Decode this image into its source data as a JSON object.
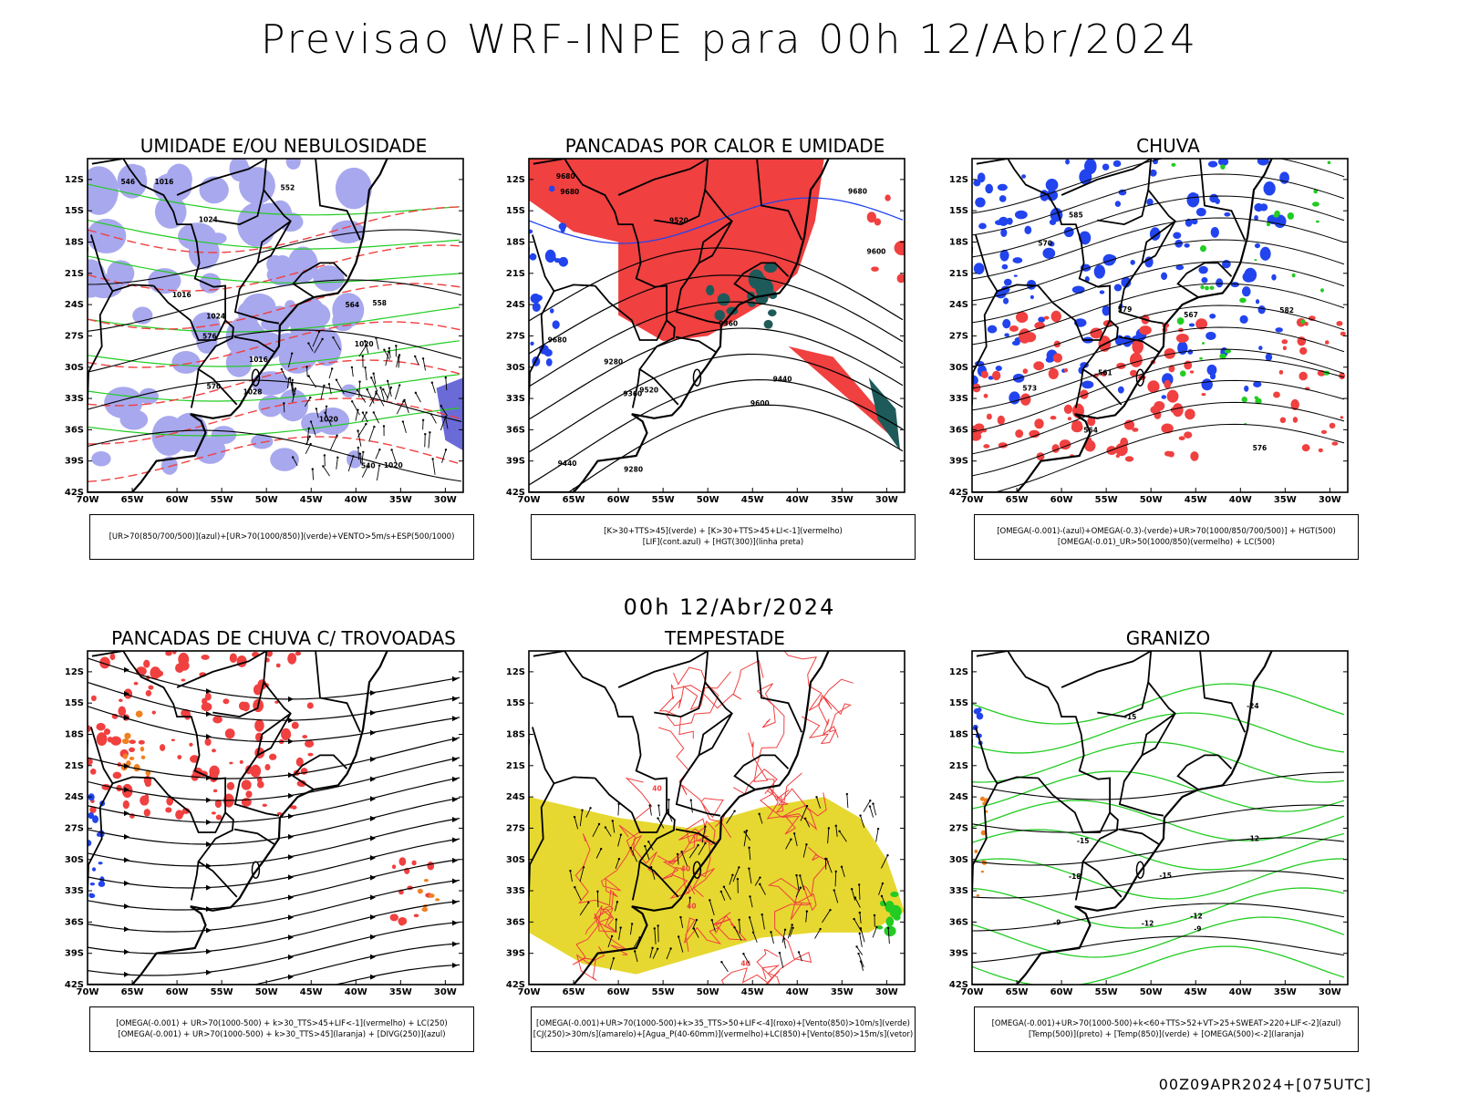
{
  "title": "Previsao WRF-INPE  para 00h 12/Abr/2024",
  "subtitle": "00h 12/Abr/2024",
  "footer": "00Z09APR2024+[075UTC]",
  "axes": {
    "lat_labels": [
      "12S",
      "15S",
      "18S",
      "21S",
      "24S",
      "27S",
      "30S",
      "33S",
      "36S",
      "39S",
      "42S"
    ],
    "lon_labels": [
      "70W",
      "65W",
      "60W",
      "55W",
      "50W",
      "45W",
      "40W",
      "35W",
      "30W"
    ]
  },
  "colors": {
    "red": "#f04040",
    "green": "#22cc22",
    "blue": "#2244ee",
    "lavender": "#a8a8ee",
    "yellow": "#e6d830",
    "teal": "#1f5a5a",
    "orange": "#f08020"
  },
  "panels": [
    {
      "id": "umidade",
      "title": "UMIDADE E/OU NEBULOSIDADE",
      "legend": [
        "[UR>70(850/700/500)](azul)+[UR>70(1000/850)](verde)+VENTO>5m/s+ESP(500/1000)"
      ],
      "contour_labels": [
        "1016",
        "1016",
        "1016",
        "1020",
        "1020",
        "1024",
        "1028",
        "576",
        "570",
        "564",
        "558",
        "552",
        "546",
        "540",
        "1024",
        "1020"
      ]
    },
    {
      "id": "pancadas-calor",
      "title": "PANCADAS POR CALOR E UMIDADE",
      "legend": [
        "[K>30+TTS>45](verde) + [K>30+TTS>45+LI<-1](vermelho)",
        "[LIF](cont.azul) + [HGT(300)](linha preta)"
      ],
      "contour_labels": [
        "9680",
        "9680",
        "9680",
        "9680",
        "9600",
        "9600",
        "9520",
        "9520",
        "9440",
        "9440",
        "9360",
        "9360",
        "9280",
        "9280"
      ]
    },
    {
      "id": "chuva",
      "title": "CHUVA",
      "legend": [
        "[OMEGA(-0.001)-(azul)+OMEGA(-0.3)-(verde)+UR>70(1000/850/700/500)] + HGT(500)",
        "[OMEGA(-0.01)_UR>50(1000/850)(vermelho) + LC(500)"
      ],
      "contour_labels": [
        "585",
        "582",
        "579",
        "576",
        "573",
        "570",
        "567",
        "564",
        "561"
      ]
    },
    {
      "id": "pancadas-trovoadas",
      "title": "PANCADAS DE CHUVA C/ TROVOADAS",
      "legend": [
        "[OMEGA(-0.001) + UR>70(1000-500) + k>30_TTS>45+LIF<-1](vermelho) + LC(250)",
        "[OMEGA(-0.001) + UR>70(1000-500) + k>30_TTS>45](laranja) + [DIVG(250)](azul)"
      ],
      "contour_labels": []
    },
    {
      "id": "tempestade",
      "title": "TEMPESTADE",
      "legend": [
        "[OMEGA(-0.001)+UR>70(1000-500)+k>35_TTS>50+LIF<-4](roxo)+[Vento(850)>10m/s](verde)",
        "[CJ(250)>30m/s](amarelo)+[Agua_P(40-60mm)](vermelho)+LC(850)+[Vento(850)>15m/s](vetor)"
      ],
      "contour_labels": [
        "40",
        "40",
        "40",
        "40"
      ]
    },
    {
      "id": "granizo",
      "title": "GRANIZO",
      "legend": [
        "[OMEGA(-0.001)+UR>70(1000-500)+k<60+TTS>52+VT>25+SWEAT>220+LIF<-2](azul)",
        "[Temp(500)](preto) + [Temp(850)](verde) + [OMEGA(500)<-2](laranja)"
      ],
      "contour_labels": [
        "-9",
        "-9",
        "-12",
        "-12",
        "-12",
        "-15",
        "-15",
        "-15",
        "-18",
        "-24"
      ]
    }
  ]
}
